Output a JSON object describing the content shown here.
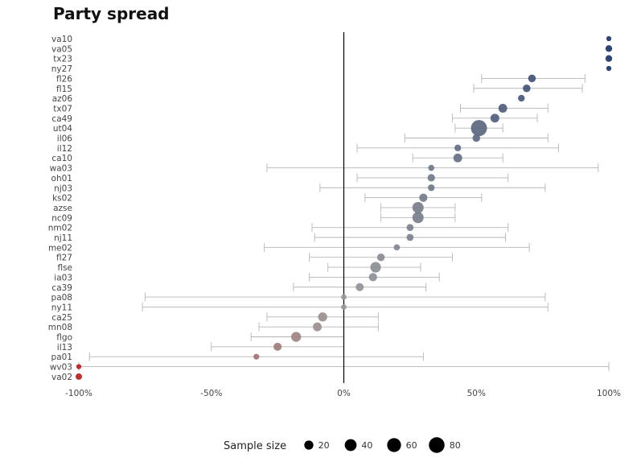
{
  "chart_data": {
    "type": "scatter",
    "title": "Party spread",
    "xlabel": "",
    "ylabel": "",
    "xlim": [
      -100,
      100
    ],
    "xticks": [
      -100,
      -50,
      0,
      50,
      100
    ],
    "xtick_labels": [
      "-100%",
      "-50%",
      "0%",
      "50%",
      "100%"
    ],
    "grid": false,
    "reference_line_x": 0,
    "color_scale": {
      "negative": "#b22222",
      "neutral": "#9a9a9a",
      "positive": "#1f3566"
    },
    "legend": {
      "title": "Sample size",
      "placement": "bottom",
      "sizes": [
        20,
        40,
        60,
        80
      ],
      "labels": [
        "20",
        "40",
        "60",
        "80"
      ]
    },
    "points": [
      {
        "label": "va10",
        "value": 100,
        "low": 100,
        "high": 100,
        "n": 3
      },
      {
        "label": "va05",
        "value": 100,
        "low": 100,
        "high": 100,
        "n": 8
      },
      {
        "label": "tx23",
        "value": 100,
        "low": 100,
        "high": 100,
        "n": 8
      },
      {
        "label": "ny27",
        "value": 100,
        "low": 100,
        "high": 100,
        "n": 3
      },
      {
        "label": "fl26",
        "value": 71,
        "low": 52,
        "high": 91,
        "n": 12
      },
      {
        "label": "fl15",
        "value": 69,
        "low": 49,
        "high": 90,
        "n": 12
      },
      {
        "label": "az06",
        "value": 67,
        "low": 67,
        "high": 67,
        "n": 8
      },
      {
        "label": "tx07",
        "value": 60,
        "low": 44,
        "high": 77,
        "n": 18
      },
      {
        "label": "ca49",
        "value": 57,
        "low": 41,
        "high": 73,
        "n": 18
      },
      {
        "label": "ut04",
        "value": 51,
        "low": 42,
        "high": 60,
        "n": 85
      },
      {
        "label": "il06",
        "value": 50,
        "low": 23,
        "high": 77,
        "n": 12
      },
      {
        "label": "il12",
        "value": 43,
        "low": 5,
        "high": 81,
        "n": 8
      },
      {
        "label": "ca10",
        "value": 43,
        "low": 26,
        "high": 60,
        "n": 18
      },
      {
        "label": "wa03",
        "value": 33,
        "low": -29,
        "high": 96,
        "n": 6
      },
      {
        "label": "oh01",
        "value": 33,
        "low": 5,
        "high": 62,
        "n": 11
      },
      {
        "label": "nj03",
        "value": 33,
        "low": -9,
        "high": 76,
        "n": 8
      },
      {
        "label": "ks02",
        "value": 30,
        "low": 8,
        "high": 52,
        "n": 15
      },
      {
        "label": "azse",
        "value": 28,
        "low": 14,
        "high": 42,
        "n": 35
      },
      {
        "label": "nc09",
        "value": 28,
        "low": 14,
        "high": 42,
        "n": 35
      },
      {
        "label": "nm02",
        "value": 25,
        "low": -12,
        "high": 62,
        "n": 9
      },
      {
        "label": "nj11",
        "value": 25,
        "low": -11,
        "high": 61,
        "n": 9
      },
      {
        "label": "me02",
        "value": 20,
        "low": -30,
        "high": 70,
        "n": 6
      },
      {
        "label": "fl27",
        "value": 14,
        "low": -13,
        "high": 41,
        "n": 12
      },
      {
        "label": "flse",
        "value": 12,
        "low": -6,
        "high": 29,
        "n": 30
      },
      {
        "label": "ia03",
        "value": 11,
        "low": -13,
        "high": 36,
        "n": 15
      },
      {
        "label": "ca39",
        "value": 6,
        "low": -19,
        "high": 31,
        "n": 14
      },
      {
        "label": "pa08",
        "value": 0,
        "low": -75,
        "high": 76,
        "n": 4
      },
      {
        "label": "ny11",
        "value": 0,
        "low": -76,
        "high": 77,
        "n": 4
      },
      {
        "label": "ca25",
        "value": -8,
        "low": -29,
        "high": 13,
        "n": 20
      },
      {
        "label": "mn08",
        "value": -10,
        "low": -32,
        "high": 13,
        "n": 18
      },
      {
        "label": "flgo",
        "value": -18,
        "low": -35,
        "high": 0,
        "n": 25
      },
      {
        "label": "il13",
        "value": -25,
        "low": -50,
        "high": 0,
        "n": 14
      },
      {
        "label": "pa01",
        "value": -33,
        "low": -96,
        "high": 30,
        "n": 5
      },
      {
        "label": "wv03",
        "value": -100,
        "low": -100,
        "high": 100,
        "n": 3
      },
      {
        "label": "va02",
        "value": -100,
        "low": -100,
        "high": -100,
        "n": 7
      }
    ]
  }
}
